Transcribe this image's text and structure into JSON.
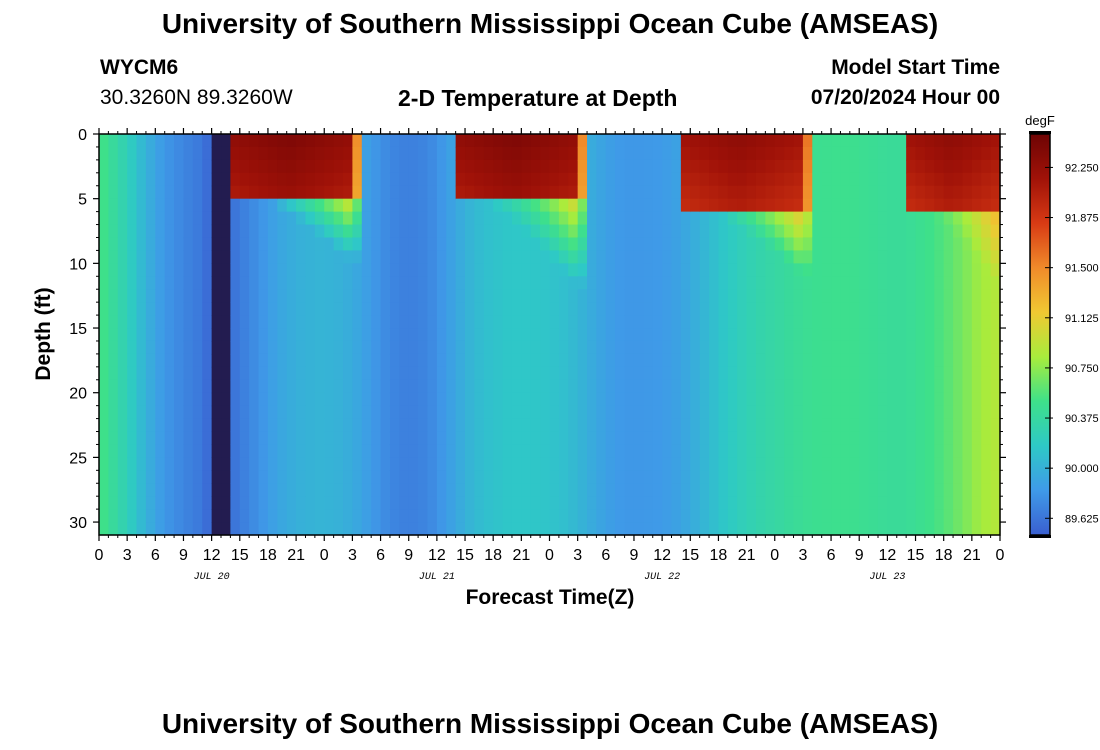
{
  "header": {
    "title": "University of Southern Mississippi Ocean Cube (AMSEAS)",
    "station": "WYCM6",
    "coords": "30.3260N  89.3260W",
    "subtitle": "2-D Temperature at Depth",
    "model_label": "Model Start Time",
    "model_time": "07/20/2024 Hour 00"
  },
  "footer": {
    "title": "University of Southern Mississippi Ocean Cube (AMSEAS)"
  },
  "colors": {
    "scale": [
      "#3a5fd0",
      "#3f9ae8",
      "#2ec9c6",
      "#3ee08a",
      "#a8ec3c",
      "#f0c832",
      "#f08a2a",
      "#d83a14",
      "#a01208",
      "#6e0404"
    ],
    "dark_band": "#231c50"
  },
  "chart_data": {
    "type": "heatmap",
    "xlabel": "Forecast Time(Z)",
    "ylabel": "Depth (ft)",
    "units": "degF",
    "x_range_hours": [
      0,
      96
    ],
    "ylim": [
      0,
      31
    ],
    "yticks": [
      0,
      5,
      10,
      15,
      20,
      25,
      30
    ],
    "xticks": [
      {
        "h": 0,
        "label": "0"
      },
      {
        "h": 3,
        "label": "3"
      },
      {
        "h": 6,
        "label": "6"
      },
      {
        "h": 9,
        "label": "9"
      },
      {
        "h": 12,
        "label": "12"
      },
      {
        "h": 15,
        "label": "15"
      },
      {
        "h": 18,
        "label": "18"
      },
      {
        "h": 21,
        "label": "21"
      },
      {
        "h": 24,
        "label": "0"
      },
      {
        "h": 27,
        "label": "3"
      },
      {
        "h": 30,
        "label": "6"
      },
      {
        "h": 33,
        "label": "9"
      },
      {
        "h": 36,
        "label": "12"
      },
      {
        "h": 39,
        "label": "15"
      },
      {
        "h": 42,
        "label": "18"
      },
      {
        "h": 45,
        "label": "21"
      },
      {
        "h": 48,
        "label": "0"
      },
      {
        "h": 51,
        "label": "3"
      },
      {
        "h": 54,
        "label": "6"
      },
      {
        "h": 57,
        "label": "9"
      },
      {
        "h": 60,
        "label": "12"
      },
      {
        "h": 63,
        "label": "15"
      },
      {
        "h": 66,
        "label": "18"
      },
      {
        "h": 69,
        "label": "21"
      },
      {
        "h": 72,
        "label": "0"
      },
      {
        "h": 75,
        "label": "3"
      },
      {
        "h": 78,
        "label": "6"
      },
      {
        "h": 81,
        "label": "9"
      },
      {
        "h": 84,
        "label": "12"
      },
      {
        "h": 87,
        "label": "15"
      },
      {
        "h": 90,
        "label": "18"
      },
      {
        "h": 93,
        "label": "21"
      },
      {
        "h": 96,
        "label": "0"
      }
    ],
    "date_labels": [
      {
        "h": 12,
        "label": "JUL 20"
      },
      {
        "h": 36,
        "label": "JUL 21"
      },
      {
        "h": 60,
        "label": "JUL 22"
      },
      {
        "h": 84,
        "label": "JUL 23"
      }
    ],
    "colorbar": {
      "label": "degF",
      "min": 89.5,
      "max": 92.5,
      "ticks": [
        92.25,
        91.875,
        91.5,
        91.125,
        90.75,
        90.375,
        90.0,
        89.625
      ],
      "tick_labels": [
        "92.250",
        "91.875",
        "91.500",
        "91.125",
        "90.750",
        "90.375",
        "90.000",
        "89.625"
      ]
    },
    "deep_temperature_profile": {
      "hours": [
        0,
        1,
        3,
        5,
        7,
        9,
        11,
        12,
        13,
        14,
        16,
        18,
        20,
        22,
        24,
        26,
        28,
        30,
        31,
        33,
        35,
        36,
        38,
        40,
        42,
        44,
        46,
        48,
        50,
        52,
        54,
        56,
        58,
        60,
        62,
        64,
        66,
        68,
        70,
        72,
        74,
        76,
        78,
        80,
        82,
        84,
        86,
        88,
        90,
        92,
        94,
        96
      ],
      "degF": [
        90.55,
        90.45,
        90.25,
        90.0,
        89.82,
        89.72,
        89.64,
        89.52,
        89.56,
        89.6,
        89.72,
        89.85,
        89.95,
        90.0,
        90.02,
        89.99,
        89.9,
        89.78,
        89.73,
        89.68,
        89.72,
        89.78,
        89.92,
        90.05,
        90.12,
        90.15,
        90.15,
        90.13,
        90.08,
        89.98,
        89.88,
        89.82,
        89.82,
        89.84,
        89.9,
        90.0,
        90.12,
        90.22,
        90.3,
        90.36,
        90.42,
        90.46,
        90.48,
        90.48,
        90.45,
        90.42,
        90.42,
        90.48,
        90.56,
        90.68,
        90.82,
        90.9
      ]
    },
    "surface_warm_events": [
      {
        "start_h": 14.5,
        "end_h": 27,
        "peak_degF": 92.4,
        "top_layer_depth_ft": 4.5,
        "max_depth_ft": 10
      },
      {
        "start_h": 38.5,
        "end_h": 51,
        "peak_degF": 92.4,
        "top_layer_depth_ft": 4.5,
        "max_depth_ft": 12
      },
      {
        "start_h": 62.5,
        "end_h": 75,
        "peak_degF": 92.3,
        "top_layer_depth_ft": 5.5,
        "max_depth_ft": 11
      },
      {
        "start_h": 86.5,
        "end_h": 96,
        "peak_degF": 92.3,
        "top_layer_depth_ft": 5.5,
        "max_depth_ft": 12
      }
    ]
  }
}
